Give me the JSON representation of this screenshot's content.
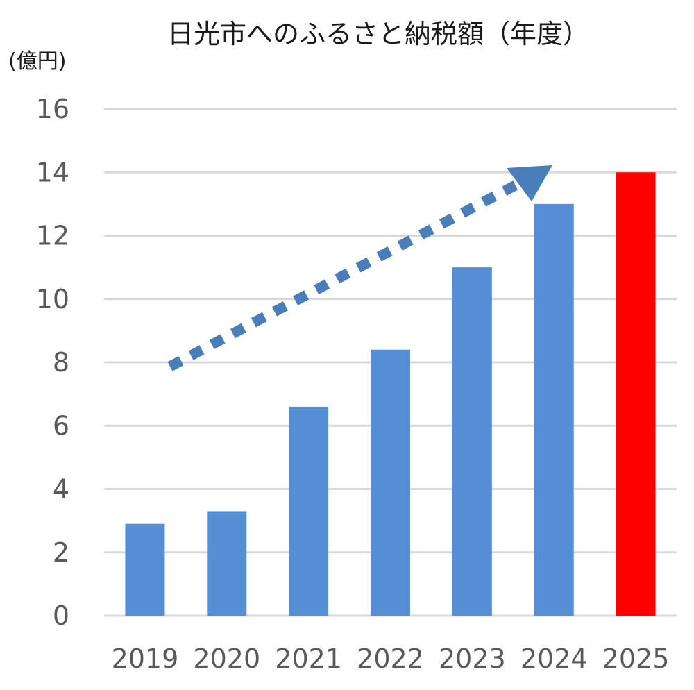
{
  "chart_data": {
    "type": "bar",
    "title": "日光市へのふるさと納税額（年度）",
    "ylabel": "(億円)",
    "xlabel": "",
    "categories": [
      "2019",
      "2020",
      "2021",
      "2022",
      "2023",
      "2024",
      "2025"
    ],
    "values": [
      2.9,
      3.3,
      6.6,
      8.4,
      11.0,
      13.0,
      14.0
    ],
    "bar_colors": [
      "#558ed5",
      "#558ed5",
      "#558ed5",
      "#558ed5",
      "#558ed5",
      "#558ed5",
      "#ff0000"
    ],
    "ylim": [
      0,
      16
    ],
    "yticks": [
      0,
      2,
      4,
      6,
      8,
      10,
      12,
      14,
      16
    ],
    "grid": true,
    "legend": "none",
    "annotation": "dotted upward trend arrow",
    "annotation_color": "#4a7ebb"
  }
}
